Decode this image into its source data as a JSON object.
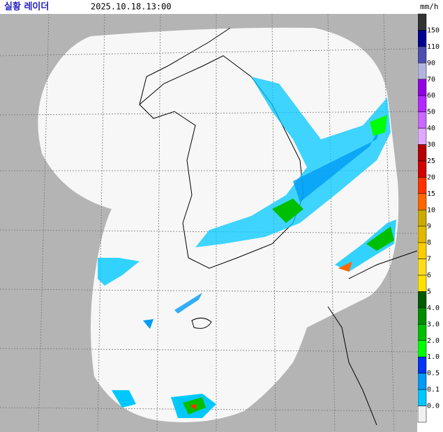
{
  "header": {
    "title": "실황 레이더",
    "time": "2025.10.18.13:00",
    "unit": "mm/h"
  },
  "legend": {
    "top_color": "#333333",
    "items": [
      {
        "label": "150",
        "color": "#000390"
      },
      {
        "label": "110",
        "color": "#4c4eb1"
      },
      {
        "label": "90",
        "color": "#b3b4de"
      },
      {
        "label": "70",
        "color": "#9300e4"
      },
      {
        "label": "60",
        "color": "#b329ff"
      },
      {
        "label": "50",
        "color": "#c969ff"
      },
      {
        "label": "40",
        "color": "#dfa9ff"
      },
      {
        "label": "30",
        "color": "#b40000"
      },
      {
        "label": "25",
        "color": "#d20000"
      },
      {
        "label": "20",
        "color": "#ff3200"
      },
      {
        "label": "15",
        "color": "#ff6600"
      },
      {
        "label": "10",
        "color": "#ccaa00"
      },
      {
        "label": "9",
        "color": "#e0b900"
      },
      {
        "label": "8",
        "color": "#f9cd00"
      },
      {
        "label": "7",
        "color": "#ffdc1f"
      },
      {
        "label": "6",
        "color": "#ffe100"
      },
      {
        "label": "5",
        "color": "#005a00"
      },
      {
        "label": "4.0",
        "color": "#008c00"
      },
      {
        "label": "3.0",
        "color": "#00be00"
      },
      {
        "label": "2.0",
        "color": "#00ff00"
      },
      {
        "label": "1.0",
        "color": "#0033f5"
      },
      {
        "label": "0.5",
        "color": "#009bf5"
      },
      {
        "label": "0.1",
        "color": "#00c8ff"
      },
      {
        "label": "0.0",
        "color": "#f0f0f0"
      }
    ]
  }
}
